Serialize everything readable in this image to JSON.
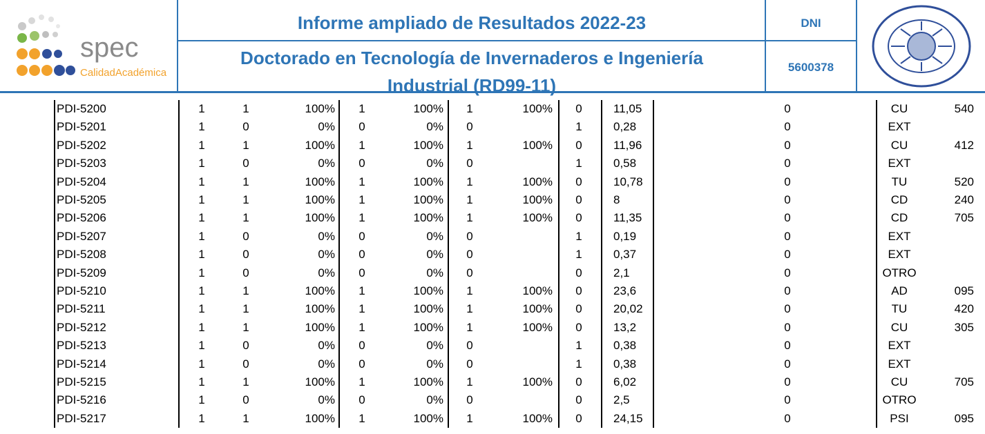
{
  "logo": {
    "name": "spec",
    "tagline": "CalidadAcadémica"
  },
  "header": {
    "title": "Informe ampliado de Resultados 2022-23",
    "subtitle": "Doctorado en Tecnología de Invernaderos e Ingeniería Industrial (RD99-11)",
    "dni_label": "DNI",
    "dni": "5600378"
  },
  "table": {
    "rows": [
      [
        "PDI-5200",
        "1",
        "1",
        "100%",
        "1",
        "100%",
        "1",
        "100%",
        "0",
        "11,05",
        "0",
        "CU",
        "540"
      ],
      [
        "PDI-5201",
        "1",
        "0",
        "0%",
        "0",
        "0%",
        "0",
        null,
        "1",
        "0,28",
        "0",
        "EXT",
        null
      ],
      [
        "PDI-5202",
        "1",
        "1",
        "100%",
        "1",
        "100%",
        "1",
        "100%",
        "0",
        "11,96",
        "0",
        "CU",
        "412"
      ],
      [
        "PDI-5203",
        "1",
        "0",
        "0%",
        "0",
        "0%",
        "0",
        null,
        "1",
        "0,58",
        "0",
        "EXT",
        null
      ],
      [
        "PDI-5204",
        "1",
        "1",
        "100%",
        "1",
        "100%",
        "1",
        "100%",
        "0",
        "10,78",
        "0",
        "TU",
        "520"
      ],
      [
        "PDI-5205",
        "1",
        "1",
        "100%",
        "1",
        "100%",
        "1",
        "100%",
        "0",
        "8",
        "0",
        "CD",
        "240"
      ],
      [
        "PDI-5206",
        "1",
        "1",
        "100%",
        "1",
        "100%",
        "1",
        "100%",
        "0",
        "11,35",
        "0",
        "CD",
        "705"
      ],
      [
        "PDI-5207",
        "1",
        "0",
        "0%",
        "0",
        "0%",
        "0",
        null,
        "1",
        "0,19",
        "0",
        "EXT",
        null
      ],
      [
        "PDI-5208",
        "1",
        "0",
        "0%",
        "0",
        "0%",
        "0",
        null,
        "1",
        "0,37",
        "0",
        "EXT",
        null
      ],
      [
        "PDI-5209",
        "1",
        "0",
        "0%",
        "0",
        "0%",
        "0",
        null,
        "0",
        "2,1",
        "0",
        "OTRO",
        null
      ],
      [
        "PDI-5210",
        "1",
        "1",
        "100%",
        "1",
        "100%",
        "1",
        "100%",
        "0",
        "23,6",
        "0",
        "AD",
        "095"
      ],
      [
        "PDI-5211",
        "1",
        "1",
        "100%",
        "1",
        "100%",
        "1",
        "100%",
        "0",
        "20,02",
        "0",
        "TU",
        "420"
      ],
      [
        "PDI-5212",
        "1",
        "1",
        "100%",
        "1",
        "100%",
        "1",
        "100%",
        "0",
        "13,2",
        "0",
        "CU",
        "305"
      ],
      [
        "PDI-5213",
        "1",
        "0",
        "0%",
        "0",
        "0%",
        "0",
        null,
        "1",
        "0,38",
        "0",
        "EXT",
        null
      ],
      [
        "PDI-5214",
        "1",
        "0",
        "0%",
        "0",
        "0%",
        "0",
        null,
        "1",
        "0,38",
        "0",
        "EXT",
        null
      ],
      [
        "PDI-5215",
        "1",
        "1",
        "100%",
        "1",
        "100%",
        "1",
        "100%",
        "0",
        "6,02",
        "0",
        "CU",
        "705"
      ],
      [
        "PDI-5216",
        "1",
        "0",
        "0%",
        "0",
        "0%",
        "0",
        null,
        "0",
        "2,5",
        "0",
        "OTRO",
        null
      ],
      [
        "PDI-5217",
        "1",
        "1",
        "100%",
        "1",
        "100%",
        "1",
        "100%",
        "0",
        "24,15",
        "0",
        "PSI",
        "095"
      ]
    ]
  }
}
